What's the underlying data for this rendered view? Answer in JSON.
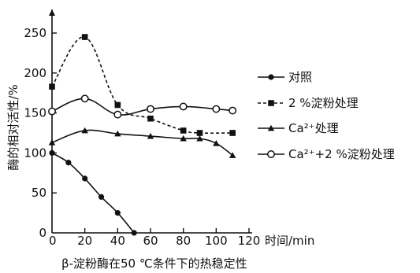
{
  "chart_data": {
    "type": "line",
    "caption": "β-淀粉酶在50 ℃条件下的热稳定性",
    "xlabel": "时间/min",
    "ylabel": "酶的相对活性/%",
    "xlim": [
      0,
      120
    ],
    "ylim": [
      0,
      250
    ],
    "x_ticks": [
      0,
      20,
      40,
      60,
      80,
      100,
      120
    ],
    "y_ticks": [
      0,
      50,
      100,
      150,
      200,
      250
    ],
    "grid": false,
    "legend_position": "right",
    "series": [
      {
        "name": "对照",
        "marker": "filled-circle",
        "line": "solid",
        "x": [
          0,
          10,
          20,
          30,
          40,
          50
        ],
        "y": [
          100,
          88,
          68,
          45,
          25,
          0
        ]
      },
      {
        "name": "2 %淀粉处理",
        "marker": "filled-square",
        "line": "dashed",
        "x": [
          0,
          20,
          40,
          60,
          80,
          90,
          110
        ],
        "y": [
          183,
          245,
          160,
          143,
          128,
          125,
          125
        ]
      },
      {
        "name": "Ca²⁺处理",
        "marker": "filled-triangle",
        "line": "solid",
        "x": [
          0,
          20,
          40,
          60,
          80,
          90,
          100,
          110
        ],
        "y": [
          113,
          128,
          124,
          121,
          118,
          118,
          112,
          97
        ]
      },
      {
        "name": "Ca²⁺+2 %淀粉处理",
        "marker": "open-circle",
        "line": "solid",
        "x": [
          0,
          20,
          40,
          60,
          80,
          100,
          110
        ],
        "y": [
          152,
          168,
          148,
          155,
          158,
          155,
          153
        ]
      }
    ]
  }
}
